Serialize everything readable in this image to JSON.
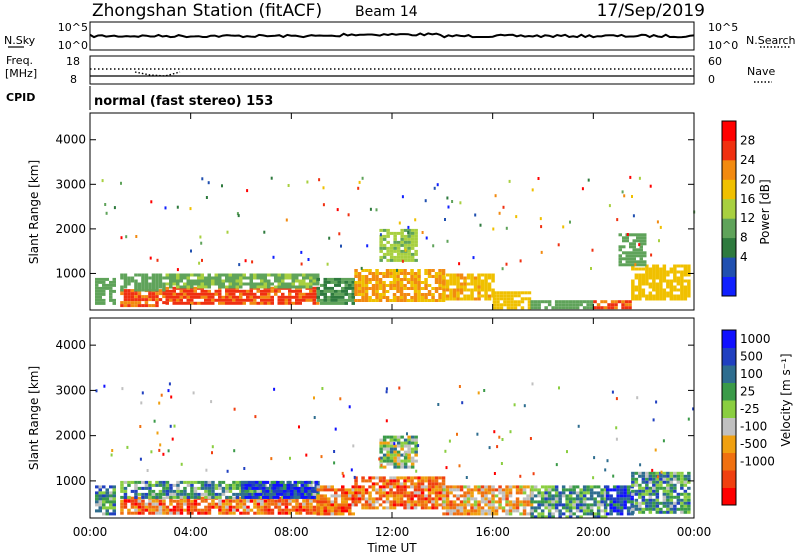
{
  "header": {
    "station": "Zhongshan Station (fitACF)",
    "beam": "Beam 14",
    "date": "17/Sep/2019"
  },
  "strips": {
    "nsky_label": "N.Sky",
    "nsky_ticks": [
      "10^5",
      "10^0"
    ],
    "nsearch_label": "N.Search",
    "nsearch_ticks": [
      "10^5",
      "10^0"
    ],
    "freq_label": "Freq.",
    "freq_unit": "[MHz]",
    "freq_ticks": [
      "18",
      "8"
    ],
    "nave_label": "Nave",
    "nave_ticks": [
      "60",
      "0"
    ],
    "cpid_label": "CPID",
    "cpid_text": "normal (fast stereo) 153"
  },
  "colors": {
    "power": [
      "#1020ff",
      "#2050b0",
      "#2e7a3e",
      "#5fa35a",
      "#a8d040",
      "#f0c000",
      "#f28a10",
      "#f03010",
      "#ff0000"
    ],
    "velocity": [
      "#ff0000",
      "#f04010",
      "#f07010",
      "#f0a010",
      "#c0c0c0",
      "#8ace40",
      "#3a9a48",
      "#2e6d8f",
      "#2040c0",
      "#1010ff"
    ]
  },
  "chart_data": [
    {
      "type": "heatmap",
      "name": "power",
      "ylabel": "Slant Range [km]",
      "colorbar_label": "Power [dB]",
      "colorbar_ticks": [
        "28",
        "24",
        "20",
        "16",
        "12",
        "8",
        "4"
      ],
      "colorbar_range": [
        0,
        32
      ],
      "ylim": [
        180,
        4600
      ],
      "yticks": [
        "4000",
        "3000",
        "2000",
        "1000"
      ],
      "xlim": [
        0,
        24
      ],
      "time_range": [
        "00:00",
        "00:00"
      ],
      "patches": [
        {
          "t": [
            0.2,
            1.0
          ],
          "r": [
            300,
            900
          ],
          "v": 12
        },
        {
          "t": [
            1.2,
            3.0
          ],
          "r": [
            300,
            650
          ],
          "v": 26
        },
        {
          "t": [
            1.2,
            3.0
          ],
          "r": [
            650,
            1000
          ],
          "v": 12
        },
        {
          "t": [
            3.0,
            9.0
          ],
          "r": [
            300,
            700
          ],
          "v": 27
        },
        {
          "t": [
            3.0,
            9.0
          ],
          "r": [
            700,
            1000
          ],
          "v": 13
        },
        {
          "t": [
            9.0,
            10.5
          ],
          "r": [
            300,
            900
          ],
          "v": 10
        },
        {
          "t": [
            10.5,
            14.0
          ],
          "r": [
            400,
            1100
          ],
          "v": 22
        },
        {
          "t": [
            11.5,
            13.0
          ],
          "r": [
            1300,
            2000
          ],
          "v": 15
        },
        {
          "t": [
            14.0,
            16.0
          ],
          "r": [
            400,
            1000
          ],
          "v": 21
        },
        {
          "t": [
            16.0,
            17.5
          ],
          "r": [
            200,
            600
          ],
          "v": 20
        },
        {
          "t": [
            17.5,
            20.0
          ],
          "r": [
            200,
            400
          ],
          "v": 12
        },
        {
          "t": [
            20.0,
            21.5
          ],
          "r": [
            200,
            400
          ],
          "v": 27
        },
        {
          "t": [
            21.5,
            23.8
          ],
          "r": [
            400,
            1200
          ],
          "v": 20
        },
        {
          "t": [
            21.0,
            22.0
          ],
          "r": [
            1200,
            1900
          ],
          "v": 12
        }
      ]
    },
    {
      "type": "heatmap",
      "name": "velocity",
      "ylabel": "Slant Range [km]",
      "colorbar_label": "Velocity [m s⁻¹]",
      "colorbar_ticks": [
        "1000",
        "500",
        "100",
        "25",
        "-25",
        "-100",
        "-500",
        "-1000"
      ],
      "ylim": [
        180,
        4600
      ],
      "yticks": [
        "4000",
        "3000",
        "2000",
        "1000"
      ],
      "xlim": [
        0,
        24
      ],
      "time_range": [
        "00:00",
        "00:00"
      ],
      "patches": [
        {
          "t": [
            0.2,
            1.0
          ],
          "r": [
            300,
            900
          ],
          "v": 6
        },
        {
          "t": [
            1.2,
            9.0
          ],
          "r": [
            300,
            650
          ],
          "v": 2
        },
        {
          "t": [
            1.2,
            9.0
          ],
          "r": [
            650,
            1000
          ],
          "v": 6
        },
        {
          "t": [
            6.0,
            9.0
          ],
          "r": [
            650,
            1000
          ],
          "v": 8
        },
        {
          "t": [
            9.0,
            10.5
          ],
          "r": [
            300,
            900
          ],
          "v": 2
        },
        {
          "t": [
            10.5,
            14.0
          ],
          "r": [
            400,
            1100
          ],
          "v": 2
        },
        {
          "t": [
            11.5,
            13.0
          ],
          "r": [
            1300,
            2000
          ],
          "v": 5
        },
        {
          "t": [
            14.0,
            17.5
          ],
          "r": [
            300,
            900
          ],
          "v": 3
        },
        {
          "t": [
            17.5,
            20.5
          ],
          "r": [
            200,
            900
          ],
          "v": 6
        },
        {
          "t": [
            20.5,
            21.5
          ],
          "r": [
            300,
            900
          ],
          "v": 8
        },
        {
          "t": [
            21.5,
            23.8
          ],
          "r": [
            300,
            1200
          ],
          "v": 6
        }
      ]
    }
  ],
  "x_axis": {
    "label": "Time UT",
    "ticks": [
      "00:00",
      "04:00",
      "08:00",
      "12:00",
      "16:00",
      "20:00",
      "00:00"
    ]
  }
}
